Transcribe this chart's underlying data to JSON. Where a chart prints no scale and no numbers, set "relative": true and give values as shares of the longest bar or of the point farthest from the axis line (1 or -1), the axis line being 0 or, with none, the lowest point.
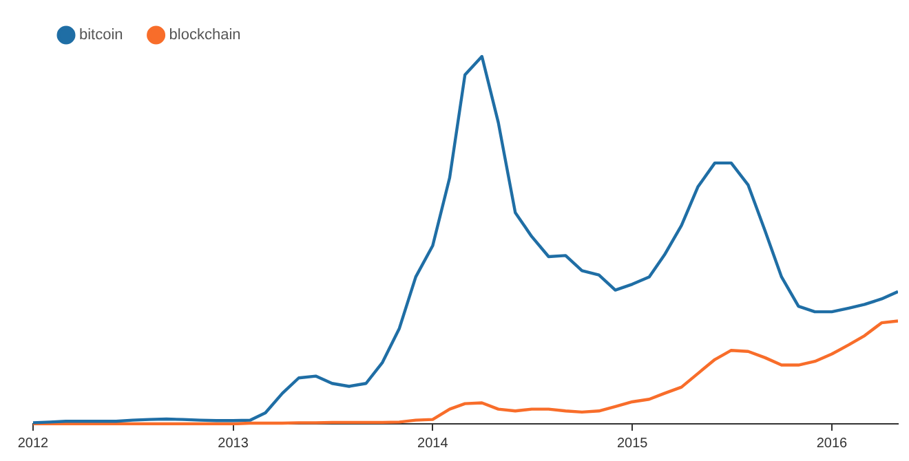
{
  "chart_data": {
    "type": "line",
    "relative": true,
    "legend": "top left",
    "grid": false,
    "marker": "none",
    "line_style": "solid",
    "x": [
      "2012-01",
      "2012-02",
      "2012-03",
      "2012-04",
      "2012-05",
      "2012-06",
      "2012-07",
      "2012-08",
      "2012-09",
      "2012-10",
      "2012-11",
      "2012-12",
      "2013-01",
      "2013-02",
      "2013-03",
      "2013-04",
      "2013-05",
      "2013-06",
      "2013-07",
      "2013-08",
      "2013-09",
      "2013-10",
      "2013-11",
      "2013-12",
      "2014-01",
      "2014-02",
      "2014-03",
      "2014-04",
      "2014-05",
      "2014-06",
      "2014-07",
      "2014-08",
      "2014-09",
      "2014-10",
      "2014-11",
      "2014-12",
      "2015-01",
      "2015-02",
      "2015-03",
      "2015-04",
      "2015-05",
      "2015-06",
      "2015-07",
      "2015-08",
      "2015-09",
      "2015-10",
      "2015-11",
      "2015-12",
      "2016-01",
      "2016-02",
      "2016-03",
      "2016-04",
      "2016-05"
    ],
    "xlim": [
      "2012-01",
      "2016-05"
    ],
    "xticks": [
      "2012",
      "2013",
      "2014",
      "2015",
      "2016"
    ],
    "series": [
      {
        "name": "bitcoin",
        "color": "#1f6ea5",
        "values": [
          0.003,
          0.005,
          0.007,
          0.007,
          0.007,
          0.007,
          0.01,
          0.012,
          0.013,
          0.012,
          0.01,
          0.009,
          0.009,
          0.01,
          0.03,
          0.083,
          0.125,
          0.13,
          0.11,
          0.102,
          0.11,
          0.167,
          0.26,
          0.4,
          0.485,
          0.67,
          0.95,
          1,
          0.82,
          0.575,
          0.51,
          0.455,
          0.458,
          0.417,
          0.405,
          0.364,
          0.38,
          0.4,
          0.46,
          0.54,
          0.645,
          0.71,
          0.71,
          0.65,
          0.525,
          0.4,
          0.32,
          0.305,
          0.305,
          0.315,
          0.325,
          0.34,
          0.36
        ]
      },
      {
        "name": "blockchain",
        "color": "#f86d2a",
        "values": [
          0,
          0,
          0,
          0,
          0,
          0,
          0,
          0,
          0,
          0,
          0,
          0,
          0,
          0.002,
          0.002,
          0.002,
          0.003,
          0.003,
          0.004,
          0.004,
          0.004,
          0.004,
          0.005,
          0.01,
          0.012,
          0.04,
          0.055,
          0.057,
          0.04,
          0.035,
          0.04,
          0.04,
          0.035,
          0.032,
          0.035,
          0.047,
          0.06,
          0.067,
          0.083,
          0.1,
          0.137,
          0.175,
          0.2,
          0.197,
          0.18,
          0.16,
          0.16,
          0.17,
          0.19,
          0.215,
          0.24,
          0.275,
          0.28
        ]
      }
    ]
  }
}
